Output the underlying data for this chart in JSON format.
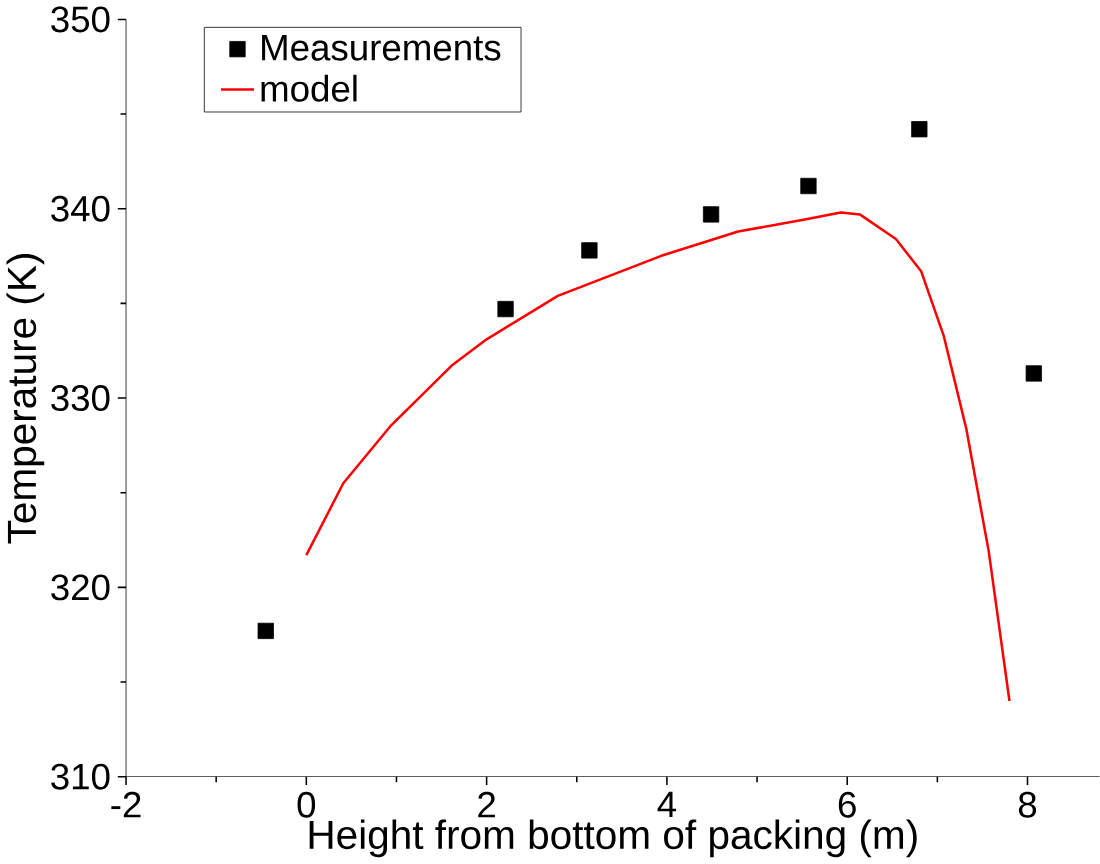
{
  "chart_data": {
    "type": "scatter",
    "xlabel": "Height from bottom of packing (m)",
    "ylabel": "Temperature (K)",
    "xlim": [
      -2,
      8.8
    ],
    "xticks": [
      -2,
      0,
      2,
      4,
      6,
      8
    ],
    "ylim": [
      310,
      350
    ],
    "yticks": [
      310,
      320,
      330,
      340,
      350
    ],
    "legend": "top left",
    "series": [
      {
        "name": "Measurements",
        "marker": "square",
        "color": "#000000",
        "x": [
          -0.45,
          2.21,
          3.14,
          4.49,
          5.57,
          6.8,
          8.07
        ],
        "values": [
          317.7,
          334.7,
          337.8,
          339.7,
          341.2,
          344.2,
          331.3
        ]
      },
      {
        "name": "model",
        "type": "line",
        "marker": "none",
        "line_style": "solid",
        "color": "#ff0000",
        "x": [
          0,
          0.41,
          0.93,
          1.61,
          2.0,
          2.79,
          3.93,
          4.79,
          5.5,
          5.93,
          6.14,
          6.54,
          6.82,
          7.07,
          7.32,
          7.57,
          7.8
        ],
        "values": [
          321.7,
          325.5,
          328.5,
          331.7,
          333.1,
          335.4,
          337.5,
          338.8,
          339.4,
          339.8,
          339.7,
          338.4,
          336.7,
          333.3,
          328.4,
          321.9,
          314.0
        ]
      }
    ]
  }
}
